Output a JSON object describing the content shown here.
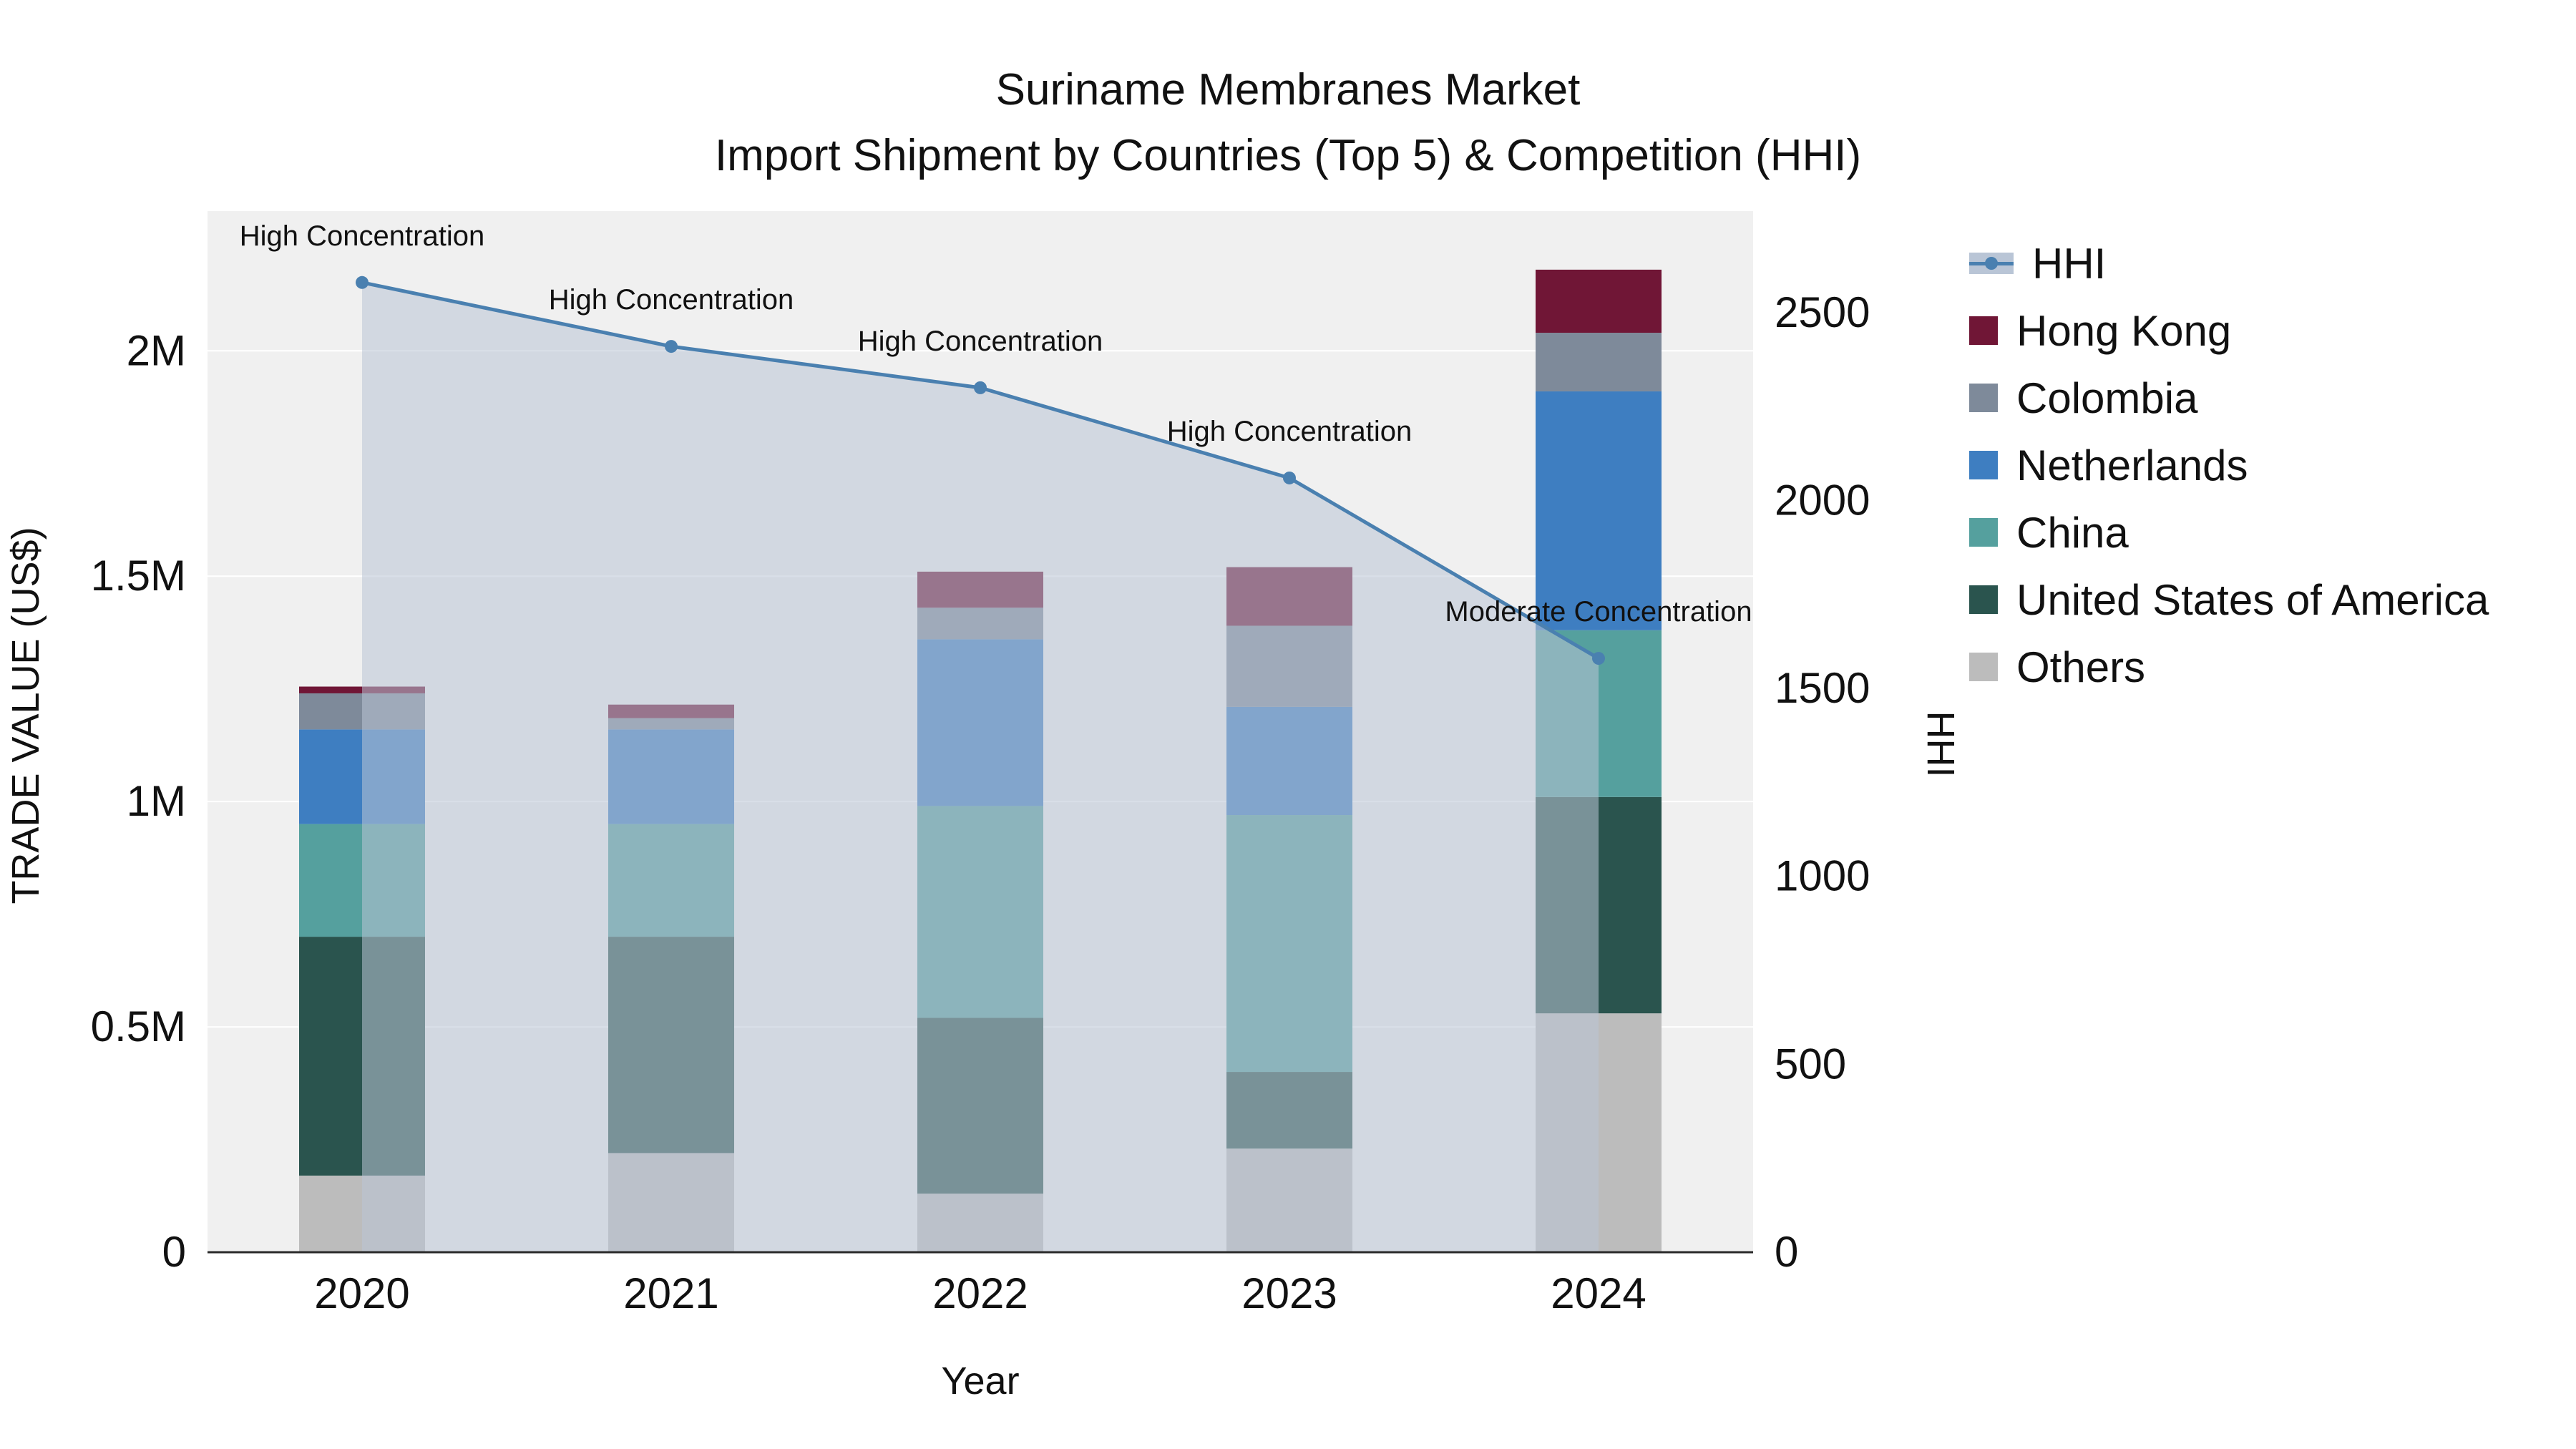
{
  "chart_data": {
    "type": "bar",
    "subtype": "stacked-bar-with-line",
    "title": "Suriname Membranes Market",
    "subtitle": "Import Shipment by Countries (Top 5) & Competition (HHI)",
    "xlabel": "Year",
    "ylabel_left": "TRADE VALUE (US$)",
    "ylabel_right": "HHI",
    "categories": [
      "2020",
      "2021",
      "2022",
      "2023",
      "2024"
    ],
    "bar_unit": "US$",
    "bar_series": [
      {
        "name": "Others",
        "color": "#bcbcbc",
        "values": [
          170000,
          220000,
          130000,
          230000,
          530000
        ]
      },
      {
        "name": "United States of America",
        "color": "#2a544e",
        "values": [
          530000,
          480000,
          390000,
          170000,
          480000
        ]
      },
      {
        "name": "China",
        "color": "#55a09e",
        "values": [
          250000,
          250000,
          470000,
          570000,
          370000
        ]
      },
      {
        "name": "Netherlands",
        "color": "#3e7ec1",
        "values": [
          210000,
          210000,
          370000,
          240000,
          530000
        ]
      },
      {
        "name": "Colombia",
        "color": "#7e8a9a",
        "values": [
          80000,
          25000,
          70000,
          180000,
          130000
        ]
      },
      {
        "name": "Hong Kong",
        "color": "#701636",
        "values": [
          15000,
          30000,
          80000,
          130000,
          140000
        ]
      }
    ],
    "line_series": {
      "name": "HHI",
      "color": "#4a80b0",
      "fill_color": "#b9c5d6",
      "values": [
        2580,
        2410,
        2300,
        2060,
        1580
      ]
    },
    "annotations": [
      "High Concentration",
      "High Concentration",
      "High Concentration",
      "High Concentration",
      "Moderate Concentration"
    ],
    "left_axis": {
      "range": [
        0,
        2310000
      ],
      "tick_values": [
        0,
        500000,
        1000000,
        1500000,
        2000000
      ],
      "tick_labels": [
        "0",
        "0.5M",
        "1M",
        "1.5M",
        "2M"
      ]
    },
    "right_axis": {
      "range": [
        0,
        2770
      ],
      "tick_values": [
        0,
        500,
        1000,
        1500,
        2000,
        2500
      ],
      "tick_labels": [
        "0",
        "500",
        "1000",
        "1500",
        "2000",
        "2500"
      ]
    },
    "legend": [
      {
        "label": "HHI",
        "type": "line",
        "color": "#4a80b0",
        "fill": "#b9c5d6"
      },
      {
        "label": "Hong Kong",
        "type": "square",
        "color": "#701636"
      },
      {
        "label": "Colombia",
        "type": "square",
        "color": "#7e8a9a"
      },
      {
        "label": "Netherlands",
        "type": "square",
        "color": "#3e7ec1"
      },
      {
        "label": "China",
        "type": "square",
        "color": "#55a09e"
      },
      {
        "label": "United States of America",
        "type": "square",
        "color": "#2a544e"
      },
      {
        "label": "Others",
        "type": "square",
        "color": "#bcbcbc"
      }
    ],
    "plot_bg": "#f0f0f0",
    "grid_color": "#ffffff",
    "axis_line_color": "#2a2a2a",
    "text_color": "#111111"
  }
}
